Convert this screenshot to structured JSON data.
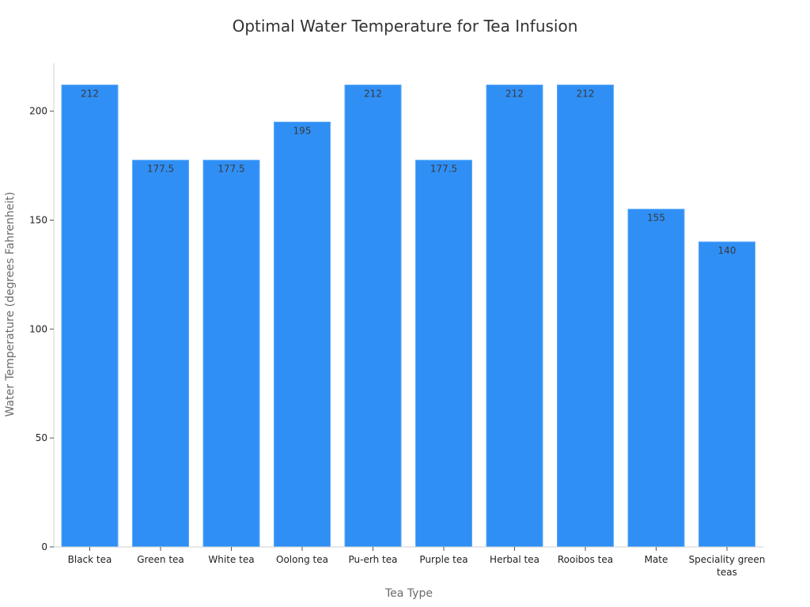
{
  "chart_data": {
    "type": "bar",
    "title": "Optimal Water Temperature for Tea Infusion",
    "xlabel": "Tea Type",
    "ylabel": "Water Temperature (degrees Fahrenheit)",
    "categories": [
      "Black tea",
      "Green tea",
      "White tea",
      "Oolong tea",
      "Pu-erh tea",
      "Purple tea",
      "Herbal tea",
      "Rooibos tea",
      "Mate",
      "Speciality green teas"
    ],
    "values": [
      212,
      177.5,
      177.5,
      195,
      212,
      177.5,
      212,
      212,
      155,
      140
    ],
    "value_labels": [
      "212",
      "177.5",
      "177.5",
      "195",
      "212",
      "177.5",
      "212",
      "212",
      "155",
      "140"
    ],
    "ylim": [
      0,
      222
    ],
    "yticks": [
      0,
      50,
      100,
      150,
      200
    ],
    "bar_color": "#2f8ff5",
    "grid": false
  }
}
